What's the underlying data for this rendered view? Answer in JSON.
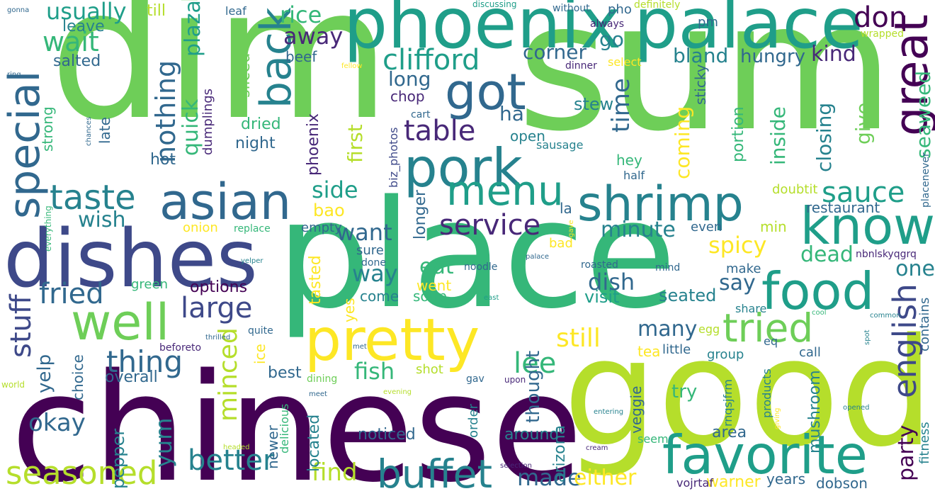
{
  "palette": [
    "#440154",
    "#482878",
    "#3e4989",
    "#31688e",
    "#26828e",
    "#1f9e89",
    "#35b779",
    "#6ece58",
    "#b5de2b",
    "#fde725"
  ],
  "words": [
    {
      "text": "dim",
      "color": "#6ece58"
    },
    {
      "text": "sum",
      "color": "#6ece58"
    },
    {
      "text": "chinese",
      "color": "#440154"
    },
    {
      "text": "good",
      "color": "#b5de2b"
    },
    {
      "text": "place",
      "color": "#35b779"
    },
    {
      "text": "phoenix",
      "color": "#1f9e89"
    },
    {
      "text": "palace",
      "color": "#1f9e89"
    },
    {
      "text": "dishes",
      "color": "#3e4989"
    },
    {
      "text": "pretty",
      "color": "#fde725"
    },
    {
      "text": "favorite",
      "color": "#1f9e89"
    },
    {
      "text": "food",
      "color": "#1f9e89"
    },
    {
      "text": "know",
      "color": "#1f9e89"
    },
    {
      "text": "shrimp",
      "color": "#26828e"
    },
    {
      "text": "asian",
      "color": "#31688e"
    },
    {
      "text": "pork",
      "color": "#26828e"
    },
    {
      "text": "got",
      "color": "#31688e"
    },
    {
      "text": "menu",
      "color": "#1f9e89"
    },
    {
      "text": "tried",
      "color": "#6ece58"
    },
    {
      "text": "great",
      "color": "#440154"
    },
    {
      "text": "special",
      "color": "#31688e"
    },
    {
      "text": "back",
      "color": "#26828e"
    },
    {
      "text": "well",
      "color": "#6ece58"
    },
    {
      "text": "buffet",
      "color": "#26828e"
    },
    {
      "text": "seasoned",
      "color": "#b5de2b"
    },
    {
      "text": "better",
      "color": "#26828e"
    },
    {
      "text": "minced",
      "color": "#b5de2b"
    },
    {
      "text": "english",
      "color": "#3e4989"
    },
    {
      "text": "taste",
      "color": "#26828e"
    },
    {
      "text": "stuff",
      "color": "#3e4989"
    },
    {
      "text": "fried",
      "color": "#31688e"
    },
    {
      "text": "large",
      "color": "#3e4989"
    },
    {
      "text": "service",
      "color": "#482878"
    },
    {
      "text": "sauce",
      "color": "#1f9e89"
    },
    {
      "text": "table",
      "color": "#482878"
    },
    {
      "text": "clifford",
      "color": "#1f9e89"
    },
    {
      "text": "nothing",
      "color": "#31688e"
    },
    {
      "text": "wait",
      "color": "#35b779"
    },
    {
      "text": "usually",
      "color": "#1f9e89"
    },
    {
      "text": "thing",
      "color": "#31688e"
    },
    {
      "text": "made",
      "color": "#31688e"
    },
    {
      "text": "find",
      "color": "#b5de2b"
    },
    {
      "text": "lee",
      "color": "#35b779"
    },
    {
      "text": "still",
      "color": "#fde725"
    },
    {
      "text": "fish",
      "color": "#35b779"
    },
    {
      "text": "dish",
      "color": "#31688e"
    },
    {
      "text": "spicy",
      "color": "#fde725"
    },
    {
      "text": "dead",
      "color": "#35b779"
    },
    {
      "text": "minute",
      "color": "#26828e"
    },
    {
      "text": "time",
      "color": "#31688e"
    },
    {
      "text": "don",
      "color": "#440154"
    },
    {
      "text": "rice",
      "color": "#35b779"
    },
    {
      "text": "away",
      "color": "#482878"
    },
    {
      "text": "quick",
      "color": "#35b779"
    },
    {
      "text": "plaza",
      "color": "#1f9e89"
    },
    {
      "text": "way",
      "color": "#26828e"
    },
    {
      "text": "want",
      "color": "#31688e"
    },
    {
      "text": "side",
      "color": "#1f9e89"
    },
    {
      "text": "okay",
      "color": "#31688e"
    },
    {
      "text": "yum",
      "color": "#26828e"
    },
    {
      "text": "either",
      "color": "#fde725"
    },
    {
      "text": "party",
      "color": "#440154"
    },
    {
      "text": "one",
      "color": "#26828e"
    },
    {
      "text": "say",
      "color": "#31688e"
    },
    {
      "text": "many",
      "color": "#31688e"
    },
    {
      "text": "seaweed",
      "color": "#35b779"
    },
    {
      "text": "inside",
      "color": "#35b779"
    },
    {
      "text": "closing",
      "color": "#26828e"
    },
    {
      "text": "give",
      "color": "#6ece58"
    },
    {
      "text": "coming",
      "color": "#fde725"
    },
    {
      "text": "bland",
      "color": "#26828e"
    },
    {
      "text": "hungry",
      "color": "#31688e"
    },
    {
      "text": "kind",
      "color": "#482878"
    },
    {
      "text": "corner",
      "color": "#31688e"
    },
    {
      "text": "long",
      "color": "#31688e"
    },
    {
      "text": "go",
      "color": "#26828e"
    },
    {
      "text": "ha",
      "color": "#31688e"
    },
    {
      "text": "first",
      "color": "#b5de2b"
    },
    {
      "text": "eat",
      "color": "#35b779"
    },
    {
      "text": "wish",
      "color": "#26828e"
    },
    {
      "text": "yelp",
      "color": "#31688e"
    },
    {
      "text": "visit",
      "color": "#1f9e89"
    },
    {
      "text": "thought",
      "color": "#31688e"
    },
    {
      "text": "arizona",
      "color": "#26828e"
    },
    {
      "text": "pepper",
      "color": "#26828e"
    },
    {
      "text": "mushroom",
      "color": "#26828e"
    },
    {
      "text": "try",
      "color": "#35b779"
    },
    {
      "text": "seated",
      "color": "#26828e"
    },
    {
      "text": "overall",
      "color": "#31688e"
    },
    {
      "text": "noticed",
      "color": "#31688e"
    },
    {
      "text": "around",
      "color": "#26828e"
    },
    {
      "text": "bao",
      "color": "#fde725"
    },
    {
      "text": "options",
      "color": "#440154"
    },
    {
      "text": "stew",
      "color": "#26828e"
    },
    {
      "text": "restaurant",
      "color": "#31688e"
    },
    {
      "text": "strong",
      "color": "#35b779"
    },
    {
      "text": "late",
      "color": "#31688e"
    },
    {
      "text": "choice",
      "color": "#31688e"
    },
    {
      "text": "area",
      "color": "#31688e"
    },
    {
      "text": "warner",
      "color": "#fde725"
    },
    {
      "text": "years",
      "color": "#31688e"
    },
    {
      "text": "dobson",
      "color": "#31688e"
    },
    {
      "text": "contains",
      "color": "#31688e"
    },
    {
      "text": "fitness",
      "color": "#26828e"
    },
    {
      "text": "portion",
      "color": "#35b779"
    },
    {
      "text": "sticky",
      "color": "#31688e"
    },
    {
      "text": "best",
      "color": "#31688e"
    },
    {
      "text": "night",
      "color": "#31688e"
    },
    {
      "text": "hot",
      "color": "#31688e"
    },
    {
      "text": "salted",
      "color": "#31688e"
    },
    {
      "text": "beef",
      "color": "#31688e"
    },
    {
      "text": "leave",
      "color": "#26828e"
    },
    {
      "text": "till",
      "color": "#b5de2b"
    },
    {
      "text": "chop",
      "color": "#482878"
    },
    {
      "text": "dried",
      "color": "#35b779"
    },
    {
      "text": "sliced",
      "color": "#6ece58"
    },
    {
      "text": "dumplings",
      "color": "#482878"
    },
    {
      "text": "open",
      "color": "#26828e"
    },
    {
      "text": "sausage",
      "color": "#26828e"
    },
    {
      "text": "hey",
      "color": "#35b779"
    },
    {
      "text": "half",
      "color": "#31688e"
    },
    {
      "text": "la",
      "color": "#31688e"
    },
    {
      "text": "even",
      "color": "#31688e"
    },
    {
      "text": "min",
      "color": "#b5de2b"
    },
    {
      "text": "make",
      "color": "#31688e"
    },
    {
      "text": "call",
      "color": "#31688e"
    },
    {
      "text": "group",
      "color": "#26828e"
    },
    {
      "text": "tea",
      "color": "#fde725"
    },
    {
      "text": "little",
      "color": "#31688e"
    },
    {
      "text": "share",
      "color": "#26828e"
    },
    {
      "text": "egg",
      "color": "#b5de2b"
    },
    {
      "text": "eq",
      "color": "#31688e"
    },
    {
      "text": "veggie",
      "color": "#31688e"
    },
    {
      "text": "seem",
      "color": "#35b779"
    },
    {
      "text": "rnqsjfrm",
      "color": "#26828e"
    },
    {
      "text": "vojrtaf",
      "color": "#482878"
    },
    {
      "text": "products",
      "color": "#26828e"
    },
    {
      "text": "nbnlskyqgrq",
      "color": "#482878"
    },
    {
      "text": "placenever",
      "color": "#31688e"
    },
    {
      "text": "doubtit",
      "color": "#b5de2b"
    },
    {
      "text": "pm",
      "color": "#31688e"
    },
    {
      "text": "pho",
      "color": "#31688e"
    },
    {
      "text": "definitely",
      "color": "#b5de2b"
    },
    {
      "text": "without",
      "color": "#31688e"
    },
    {
      "text": "always",
      "color": "#482878"
    },
    {
      "text": "dinner",
      "color": "#482878"
    },
    {
      "text": "select",
      "color": "#fde725"
    },
    {
      "text": "wrapped",
      "color": "#b5de2b"
    },
    {
      "text": "leaf",
      "color": "#31688e"
    },
    {
      "text": "discussing",
      "color": "#1f9e89"
    },
    {
      "text": "cart",
      "color": "#31688e"
    },
    {
      "text": "biz_photos",
      "color": "#3e4989"
    },
    {
      "text": "phoenix",
      "color": "#482878"
    },
    {
      "text": "longer",
      "color": "#31688e"
    },
    {
      "text": "sure",
      "color": "#31688e"
    },
    {
      "text": "come",
      "color": "#26828e"
    },
    {
      "text": "done",
      "color": "#31688e"
    },
    {
      "text": "noodle",
      "color": "#31688e"
    },
    {
      "text": "bad",
      "color": "#fde725"
    },
    {
      "text": "went",
      "color": "#fde725"
    },
    {
      "text": "soup",
      "color": "#35b779"
    },
    {
      "text": "tasted",
      "color": "#fde725"
    },
    {
      "text": "yes",
      "color": "#fde725"
    },
    {
      "text": "roasted",
      "color": "#31688e"
    },
    {
      "text": "mind",
      "color": "#31688e"
    },
    {
      "text": "empty",
      "color": "#31688e"
    },
    {
      "text": "onion",
      "color": "#fde725"
    },
    {
      "text": "replace",
      "color": "#35b779"
    },
    {
      "text": "green",
      "color": "#35b779"
    },
    {
      "text": "quite",
      "color": "#31688e"
    },
    {
      "text": "ice",
      "color": "#fde725"
    },
    {
      "text": "beforeto",
      "color": "#482878"
    },
    {
      "text": "dining",
      "color": "#6ece58"
    },
    {
      "text": "shot",
      "color": "#b5de2b"
    },
    {
      "text": "gav",
      "color": "#31688e"
    },
    {
      "text": "upon",
      "color": "#482878"
    },
    {
      "text": "order",
      "color": "#26828e"
    },
    {
      "text": "located",
      "color": "#26828e"
    },
    {
      "text": "newer",
      "color": "#31688e"
    },
    {
      "text": "delicious",
      "color": "#35b779"
    },
    {
      "text": "meet",
      "color": "#31688e"
    },
    {
      "text": "evening",
      "color": "#b5de2b"
    },
    {
      "text": "met",
      "color": "#31688e"
    },
    {
      "text": "selection",
      "color": "#482878"
    },
    {
      "text": "cream",
      "color": "#482878"
    },
    {
      "text": "entering",
      "color": "#26828e"
    },
    {
      "text": "opened",
      "color": "#26828e"
    },
    {
      "text": "giving",
      "color": "#fde725"
    },
    {
      "text": "common",
      "color": "#26828e"
    },
    {
      "text": "cool",
      "color": "#35b779"
    },
    {
      "text": "spot",
      "color": "#26828e"
    },
    {
      "text": "east",
      "color": "#1f9e89"
    },
    {
      "text": "palace",
      "color": "#31688e"
    },
    {
      "text": "gave",
      "color": "#fde725"
    },
    {
      "text": "headed",
      "color": "#b5de2b"
    },
    {
      "text": "world",
      "color": "#b5de2b"
    },
    {
      "text": "everything",
      "color": "#35b779"
    },
    {
      "text": "chances",
      "color": "#31688e"
    },
    {
      "text": "thrilled",
      "color": "#31688e"
    },
    {
      "text": "yelper",
      "color": "#26828e"
    },
    {
      "text": "fellow",
      "color": "#fde725"
    },
    {
      "text": "gonna",
      "color": "#31688e"
    },
    {
      "text": "ring",
      "color": "#31688e"
    }
  ]
}
